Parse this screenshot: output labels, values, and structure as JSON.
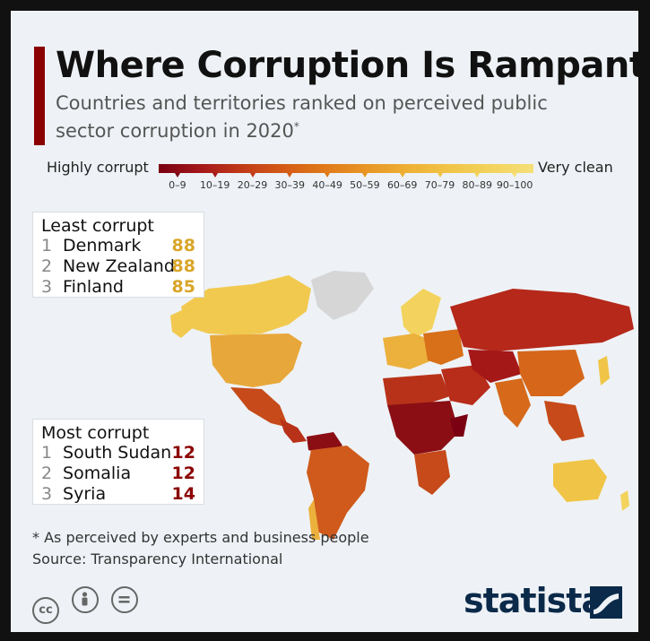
{
  "header": {
    "title": "Where Corruption Is Rampant",
    "subtitle": "Countries and territories ranked on perceived public sector corruption in 2020",
    "subtitle_mark": "*"
  },
  "legend": {
    "left_label": "Highly corrupt",
    "right_label": "Very clean",
    "bins": [
      "0–9",
      "10–19",
      "20–29",
      "30–39",
      "40–49",
      "50–59",
      "60–69",
      "70–79",
      "80–89",
      "90–100"
    ],
    "colors": [
      "#7a0012",
      "#a4161a",
      "#c13a18",
      "#d45a16",
      "#e07a1a",
      "#e89626",
      "#eeb035",
      "#f0c547",
      "#f3d35d",
      "#f5df78"
    ]
  },
  "least_corrupt": {
    "heading": "Least corrupt",
    "items": [
      {
        "rank": "1",
        "country": "Denmark",
        "score": "88"
      },
      {
        "rank": "2",
        "country": "New Zealand",
        "score": "88"
      },
      {
        "rank": "3",
        "country": "Finland",
        "score": "85"
      }
    ]
  },
  "most_corrupt": {
    "heading": "Most corrupt",
    "items": [
      {
        "rank": "1",
        "country": "South Sudan",
        "score": "12"
      },
      {
        "rank": "2",
        "country": "Somalia",
        "score": "12"
      },
      {
        "rank": "3",
        "country": "Syria",
        "score": "14"
      }
    ]
  },
  "footer": {
    "footnote": "* As perceived by experts and business people",
    "source": "Source: Transparency International",
    "brand": "statista",
    "license_icons": [
      "creative-commons-icon",
      "attribution-icon",
      "no-derivatives-icon"
    ]
  }
}
